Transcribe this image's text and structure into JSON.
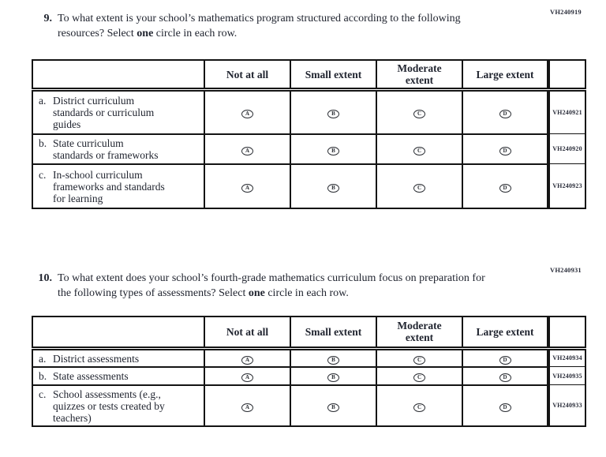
{
  "bubbles": [
    "A",
    "B",
    "C",
    "D"
  ],
  "q9": {
    "code": "VH240919",
    "number": "9.",
    "prompt_part1": "To what extent is your school’s mathematics program structured according to the following resources? Select ",
    "prompt_bold": "one",
    "prompt_part2": " circle in each row.",
    "table": {
      "headers": [
        "Not at all",
        "Small extent",
        "Moderate extent",
        "Large extent"
      ],
      "rows": [
        {
          "letter": "a.",
          "label": "District curriculum\nstandards or curriculum\nguides",
          "code": "VH240921"
        },
        {
          "letter": "b.",
          "label": "State curriculum\nstandards or frameworks",
          "code": "VH240920"
        },
        {
          "letter": "c.",
          "label": "In-school curriculum\nframeworks and standards\nfor learning",
          "code": "VH240923"
        }
      ]
    }
  },
  "q10": {
    "code": "VH240931",
    "number": "10.",
    "prompt_part1": "To what extent does your school’s fourth-grade mathematics curriculum focus on preparation for the following types of assessments? Select ",
    "prompt_bold": "one",
    "prompt_part2": " circle in each row.",
    "table": {
      "headers": [
        "Not at all",
        "Small extent",
        "Moderate extent",
        "Large extent"
      ],
      "rows": [
        {
          "letter": "a.",
          "label": "District assessments",
          "code": "VH240934"
        },
        {
          "letter": "b.",
          "label": "State assessments",
          "code": "VH240935"
        },
        {
          "letter": "c.",
          "label": "School assessments (e.g.,\nquizzes or tests created by\nteachers)",
          "code": "VH240933"
        }
      ]
    }
  }
}
